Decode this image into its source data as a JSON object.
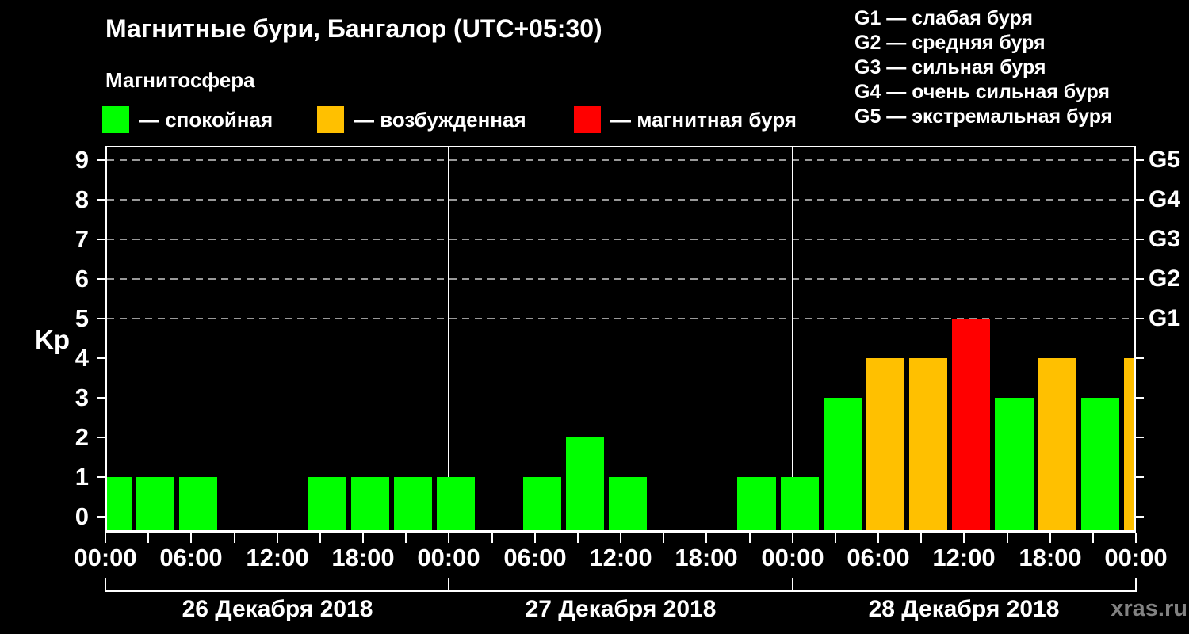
{
  "header": {
    "title": "Магнитные бури, Бангалор (UTC+05:30)",
    "subtitle": "Магнитосфера"
  },
  "legend": {
    "items": [
      {
        "name": "quiet",
        "label": "— спокойная",
        "color": "#00ff00"
      },
      {
        "name": "unsettled",
        "label": "— возбужденная",
        "color": "#ffc000"
      },
      {
        "name": "storm",
        "label": "— магнитная буря",
        "color": "#ff0000"
      }
    ]
  },
  "storm_scale": {
    "items": [
      "G1 — слабая буря",
      "G2 — средняя буря",
      "G3 — сильная буря",
      "G4 — очень сильная буря",
      "G5 — экстремальная буря"
    ]
  },
  "y_axis": {
    "title": "Kp",
    "ticks": [
      "0",
      "1",
      "2",
      "3",
      "4",
      "5",
      "6",
      "7",
      "8",
      "9"
    ]
  },
  "right_axis": {
    "labels": [
      {
        "kp": 5,
        "text": "G1"
      },
      {
        "kp": 6,
        "text": "G2"
      },
      {
        "kp": 7,
        "text": "G3"
      },
      {
        "kp": 8,
        "text": "G4"
      },
      {
        "kp": 9,
        "text": "G5"
      }
    ]
  },
  "x_axis": {
    "time_labels": [
      "00:00",
      "06:00",
      "12:00",
      "18:00",
      "00:00",
      "06:00",
      "12:00",
      "18:00",
      "00:00",
      "06:00",
      "12:00",
      "18:00",
      "00:00"
    ]
  },
  "days": {
    "labels": [
      "26 Декабря 2018",
      "27 Декабря 2018",
      "28 Декабря 2018"
    ]
  },
  "watermark": "xras.ru",
  "colors": {
    "background": "#000000",
    "axis": "#ffffff",
    "grid": "#999999",
    "quiet": "#00ff00",
    "unsettled": "#ffc000",
    "storm": "#ff0000",
    "watermark": "#828282"
  },
  "chart_data": {
    "type": "bar",
    "title": "Магнитные бури, Бангалор (UTC+05:30)",
    "ylabel": "Kp",
    "ylim": [
      0,
      9
    ],
    "grid": "dashed horizontal lines at Kp 5-9 only",
    "grid_levels": [
      5,
      6,
      7,
      8,
      9
    ],
    "x_hours_range": [
      0,
      72
    ],
    "x_note": "hours of local time (UTC+05:30) from 26.12.2018 00:00; 3-hour Kp slots are shifted, first/last bars clipped at plot edges",
    "slot_duration_hours": 3,
    "day_boundaries_hours": [
      0,
      24,
      48,
      72
    ],
    "color_rule": {
      "kp_1_3": "quiet",
      "kp_4": "unsettled",
      "kp_5_9": "storm"
    },
    "bars": [
      {
        "start_hour": -1,
        "kp": 1
      },
      {
        "start_hour": 2,
        "kp": 1
      },
      {
        "start_hour": 5,
        "kp": 1
      },
      {
        "start_hour": 8,
        "kp": 0
      },
      {
        "start_hour": 11,
        "kp": 0
      },
      {
        "start_hour": 14,
        "kp": 1
      },
      {
        "start_hour": 17,
        "kp": 1
      },
      {
        "start_hour": 20,
        "kp": 1
      },
      {
        "start_hour": 23,
        "kp": 1
      },
      {
        "start_hour": 26,
        "kp": 0
      },
      {
        "start_hour": 29,
        "kp": 1
      },
      {
        "start_hour": 32,
        "kp": 2
      },
      {
        "start_hour": 35,
        "kp": 1
      },
      {
        "start_hour": 38,
        "kp": 0
      },
      {
        "start_hour": 41,
        "kp": 0
      },
      {
        "start_hour": 44,
        "kp": 1
      },
      {
        "start_hour": 47,
        "kp": 1
      },
      {
        "start_hour": 50,
        "kp": 3
      },
      {
        "start_hour": 53,
        "kp": 4
      },
      {
        "start_hour": 56,
        "kp": 4
      },
      {
        "start_hour": 59,
        "kp": 5
      },
      {
        "start_hour": 62,
        "kp": 3
      },
      {
        "start_hour": 65,
        "kp": 4
      },
      {
        "start_hour": 68,
        "kp": 3
      },
      {
        "start_hour": 71,
        "kp": 4
      }
    ]
  }
}
